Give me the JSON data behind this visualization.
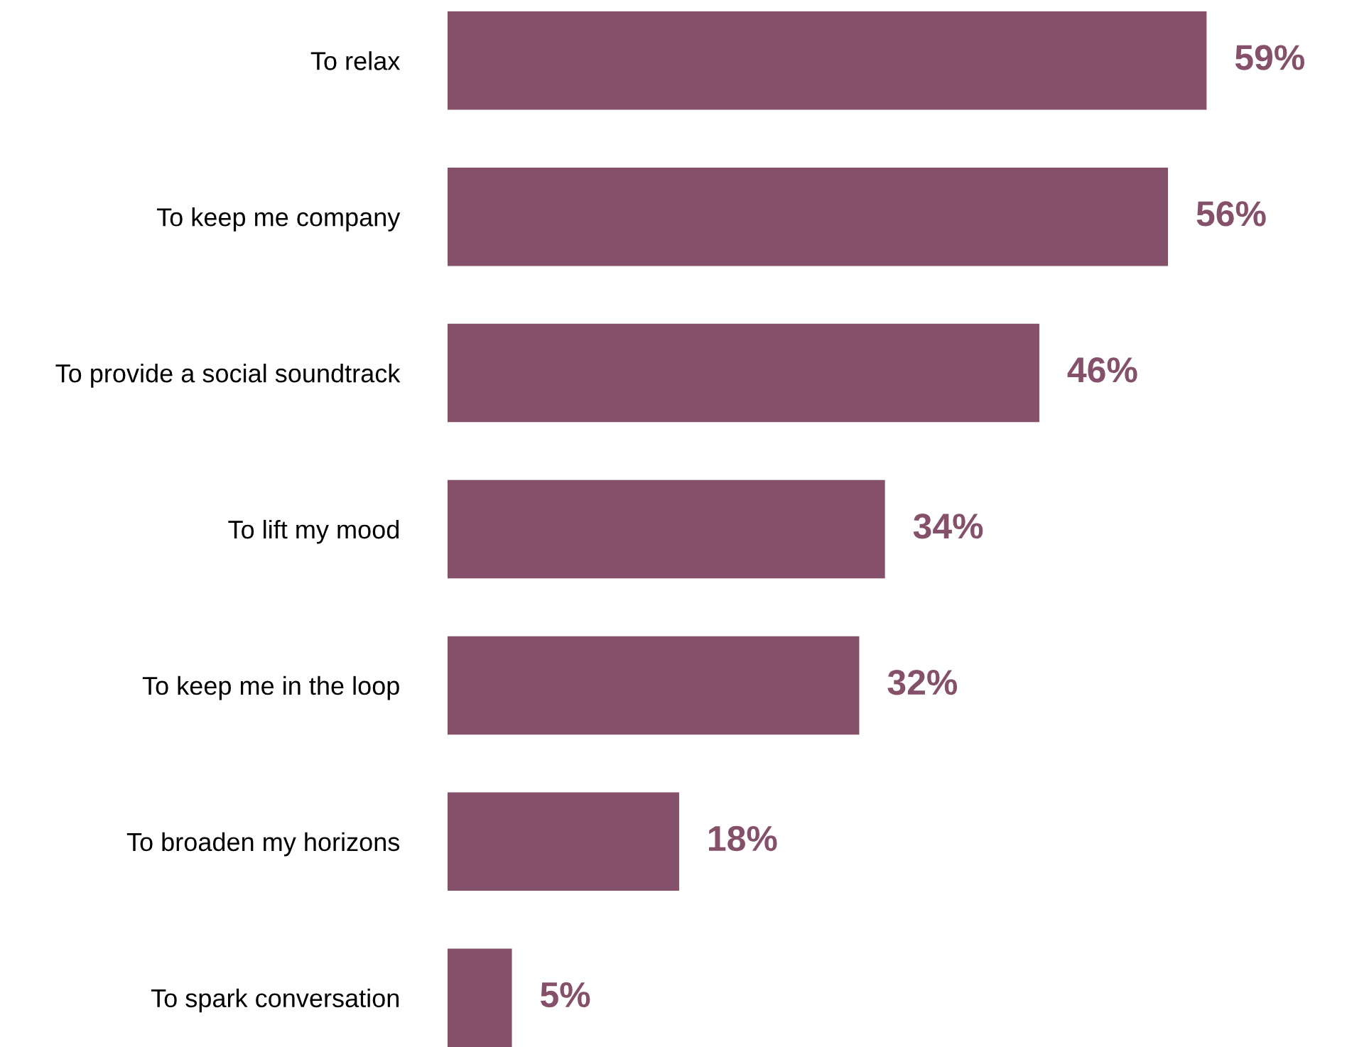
{
  "chart_data": {
    "type": "bar",
    "orientation": "horizontal",
    "categories": [
      "To relax",
      "To keep me company",
      "To provide a social soundtrack",
      "To lift my mood",
      "To keep me in the loop",
      "To broaden my horizons",
      "To spark conversation"
    ],
    "values": [
      59,
      56,
      46,
      34,
      32,
      18,
      5
    ],
    "value_labels": [
      "59%",
      "56%",
      "46%",
      "34%",
      "32%",
      "18%",
      "5%"
    ],
    "color": "#84506a",
    "grid": false,
    "legend": false
  }
}
